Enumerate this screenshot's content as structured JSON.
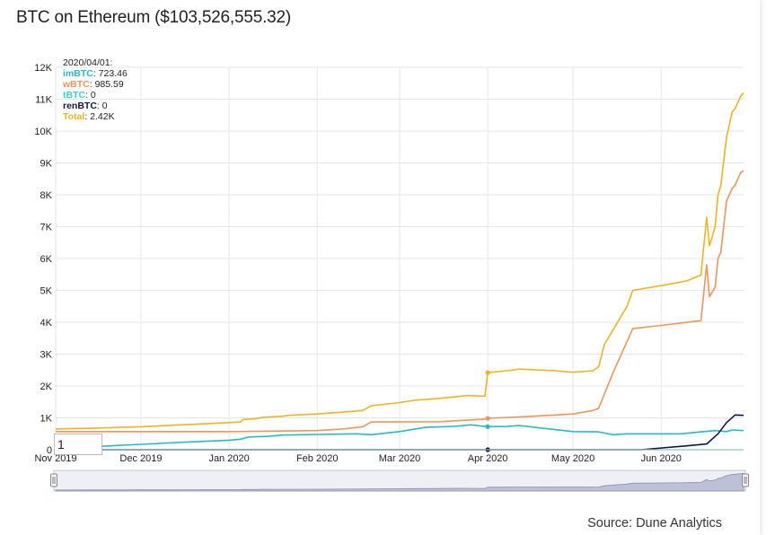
{
  "header": {
    "title": "BTC on Ethereum ($103,526,555.32)"
  },
  "footer": {
    "source": "Source: Dune Analytics"
  },
  "zoom_input": {
    "value": "1"
  },
  "tooltip": {
    "date": "2020/04/01:",
    "rows": [
      {
        "name": "imBTC",
        "value": "723.46",
        "color": "#2ab8c9"
      },
      {
        "name": "wBTC",
        "value": "985.59",
        "color": "#f0955a"
      },
      {
        "name": "tBTC",
        "value": "0",
        "color": "#37d6c2"
      },
      {
        "name": "renBTC",
        "value": "0",
        "color": "#14163f"
      },
      {
        "name": "Total",
        "value": "2.42K",
        "color": "#f0b323"
      }
    ]
  },
  "chart_data": {
    "type": "line",
    "ylim": [
      0,
      12000
    ],
    "yticks": [
      {
        "value": 0,
        "label": "0"
      },
      {
        "value": 1000,
        "label": "1K"
      },
      {
        "value": 2000,
        "label": "2K"
      },
      {
        "value": 3000,
        "label": "3K"
      },
      {
        "value": 4000,
        "label": "4K"
      },
      {
        "value": 5000,
        "label": "5K"
      },
      {
        "value": 6000,
        "label": "6K"
      },
      {
        "value": 7000,
        "label": "7K"
      },
      {
        "value": 8000,
        "label": "8K"
      },
      {
        "value": 9000,
        "label": "9K"
      },
      {
        "value": 10000,
        "label": "10K"
      },
      {
        "value": 11000,
        "label": "11K"
      },
      {
        "value": 12000,
        "label": "12K"
      }
    ],
    "xlim": [
      "2019-11-01",
      "2020-06-30"
    ],
    "xticks": [
      {
        "date": "2019-11-01",
        "label": "Nov 2019"
      },
      {
        "date": "2019-12-01",
        "label": "Dec 2019"
      },
      {
        "date": "2020-01-01",
        "label": "Jan 2020"
      },
      {
        "date": "2020-02-01",
        "label": "Feb 2020"
      },
      {
        "date": "2020-03-01",
        "label": "Mar 2020"
      },
      {
        "date": "2020-04-01",
        "label": "Apr 2020"
      },
      {
        "date": "2020-05-01",
        "label": "May 2020"
      },
      {
        "date": "2020-06-01",
        "label": "Jun 2020"
      }
    ],
    "grid": true,
    "crosshair_date": "2020-04-01",
    "series": [
      {
        "name": "Total",
        "color": "#f0b323",
        "points": [
          [
            "2019-11-01",
            650
          ],
          [
            "2019-11-15",
            680
          ],
          [
            "2019-12-01",
            720
          ],
          [
            "2019-12-15",
            780
          ],
          [
            "2020-01-01",
            850
          ],
          [
            "2020-01-05",
            870
          ],
          [
            "2020-01-06",
            950
          ],
          [
            "2020-01-10",
            970
          ],
          [
            "2020-01-13",
            1020
          ],
          [
            "2020-01-20",
            1050
          ],
          [
            "2020-01-22",
            1080
          ],
          [
            "2020-02-01",
            1120
          ],
          [
            "2020-02-10",
            1180
          ],
          [
            "2020-02-17",
            1230
          ],
          [
            "2020-02-20",
            1380
          ],
          [
            "2020-03-01",
            1480
          ],
          [
            "2020-03-06",
            1550
          ],
          [
            "2020-03-15",
            1610
          ],
          [
            "2020-03-25",
            1700
          ],
          [
            "2020-03-31",
            1680
          ],
          [
            "2020-04-01",
            2420
          ],
          [
            "2020-04-08",
            2480
          ],
          [
            "2020-04-12",
            2530
          ],
          [
            "2020-04-25",
            2480
          ],
          [
            "2020-05-01",
            2430
          ],
          [
            "2020-05-08",
            2480
          ],
          [
            "2020-05-10",
            2600
          ],
          [
            "2020-05-12",
            3300
          ],
          [
            "2020-05-20",
            4500
          ],
          [
            "2020-05-22",
            5000
          ],
          [
            "2020-06-01",
            5150
          ],
          [
            "2020-06-10",
            5300
          ],
          [
            "2020-06-15",
            5480
          ],
          [
            "2020-06-17",
            7300
          ],
          [
            "2020-06-18",
            6400
          ],
          [
            "2020-06-20",
            7000
          ],
          [
            "2020-06-21",
            8000
          ],
          [
            "2020-06-22",
            8300
          ],
          [
            "2020-06-24",
            9800
          ],
          [
            "2020-06-26",
            10600
          ],
          [
            "2020-06-27",
            10700
          ],
          [
            "2020-06-29",
            11100
          ],
          [
            "2020-06-30",
            11200
          ]
        ]
      },
      {
        "name": "wBTC",
        "color": "#f0955a",
        "points": [
          [
            "2019-11-01",
            570
          ],
          [
            "2019-12-01",
            570
          ],
          [
            "2020-01-01",
            570
          ],
          [
            "2020-02-01",
            600
          ],
          [
            "2020-02-10",
            650
          ],
          [
            "2020-02-17",
            720
          ],
          [
            "2020-02-20",
            870
          ],
          [
            "2020-03-15",
            880
          ],
          [
            "2020-03-31",
            960
          ],
          [
            "2020-04-01",
            985
          ],
          [
            "2020-04-15",
            1040
          ],
          [
            "2020-05-01",
            1120
          ],
          [
            "2020-05-08",
            1230
          ],
          [
            "2020-05-10",
            1300
          ],
          [
            "2020-05-15",
            2400
          ],
          [
            "2020-05-22",
            3800
          ],
          [
            "2020-06-01",
            3900
          ],
          [
            "2020-06-15",
            4050
          ],
          [
            "2020-06-17",
            5800
          ],
          [
            "2020-06-18",
            4800
          ],
          [
            "2020-06-20",
            5100
          ],
          [
            "2020-06-21",
            6000
          ],
          [
            "2020-06-22",
            6200
          ],
          [
            "2020-06-24",
            7800
          ],
          [
            "2020-06-26",
            8200
          ],
          [
            "2020-06-27",
            8300
          ],
          [
            "2020-06-29",
            8700
          ],
          [
            "2020-06-30",
            8750
          ]
        ]
      },
      {
        "name": "imBTC",
        "color": "#2ab8c9",
        "points": [
          [
            "2019-11-01",
            50
          ],
          [
            "2019-11-10",
            80
          ],
          [
            "2019-12-01",
            170
          ],
          [
            "2019-12-15",
            230
          ],
          [
            "2020-01-01",
            300
          ],
          [
            "2020-01-05",
            330
          ],
          [
            "2020-01-08",
            400
          ],
          [
            "2020-01-15",
            420
          ],
          [
            "2020-01-20",
            460
          ],
          [
            "2020-02-01",
            480
          ],
          [
            "2020-02-15",
            500
          ],
          [
            "2020-02-20",
            470
          ],
          [
            "2020-03-01",
            570
          ],
          [
            "2020-03-10",
            700
          ],
          [
            "2020-03-20",
            730
          ],
          [
            "2020-03-26",
            780
          ],
          [
            "2020-04-01",
            723
          ],
          [
            "2020-04-08",
            730
          ],
          [
            "2020-04-12",
            760
          ],
          [
            "2020-04-20",
            680
          ],
          [
            "2020-05-01",
            570
          ],
          [
            "2020-05-10",
            560
          ],
          [
            "2020-05-15",
            470
          ],
          [
            "2020-05-20",
            500
          ],
          [
            "2020-06-01",
            500
          ],
          [
            "2020-06-08",
            500
          ],
          [
            "2020-06-15",
            560
          ],
          [
            "2020-06-20",
            600
          ],
          [
            "2020-06-24",
            570
          ],
          [
            "2020-06-26",
            620
          ],
          [
            "2020-06-30",
            600
          ]
        ]
      },
      {
        "name": "tBTC",
        "color": "#37d6c2",
        "points": [
          [
            "2019-11-01",
            0
          ],
          [
            "2020-06-30",
            0
          ]
        ]
      },
      {
        "name": "renBTC",
        "color": "#14163f",
        "points": [
          [
            "2019-11-01",
            0
          ],
          [
            "2020-05-25",
            0
          ],
          [
            "2020-06-10",
            120
          ],
          [
            "2020-06-17",
            180
          ],
          [
            "2020-06-21",
            500
          ],
          [
            "2020-06-24",
            850
          ],
          [
            "2020-06-27",
            1090
          ],
          [
            "2020-06-30",
            1080
          ]
        ]
      }
    ]
  }
}
